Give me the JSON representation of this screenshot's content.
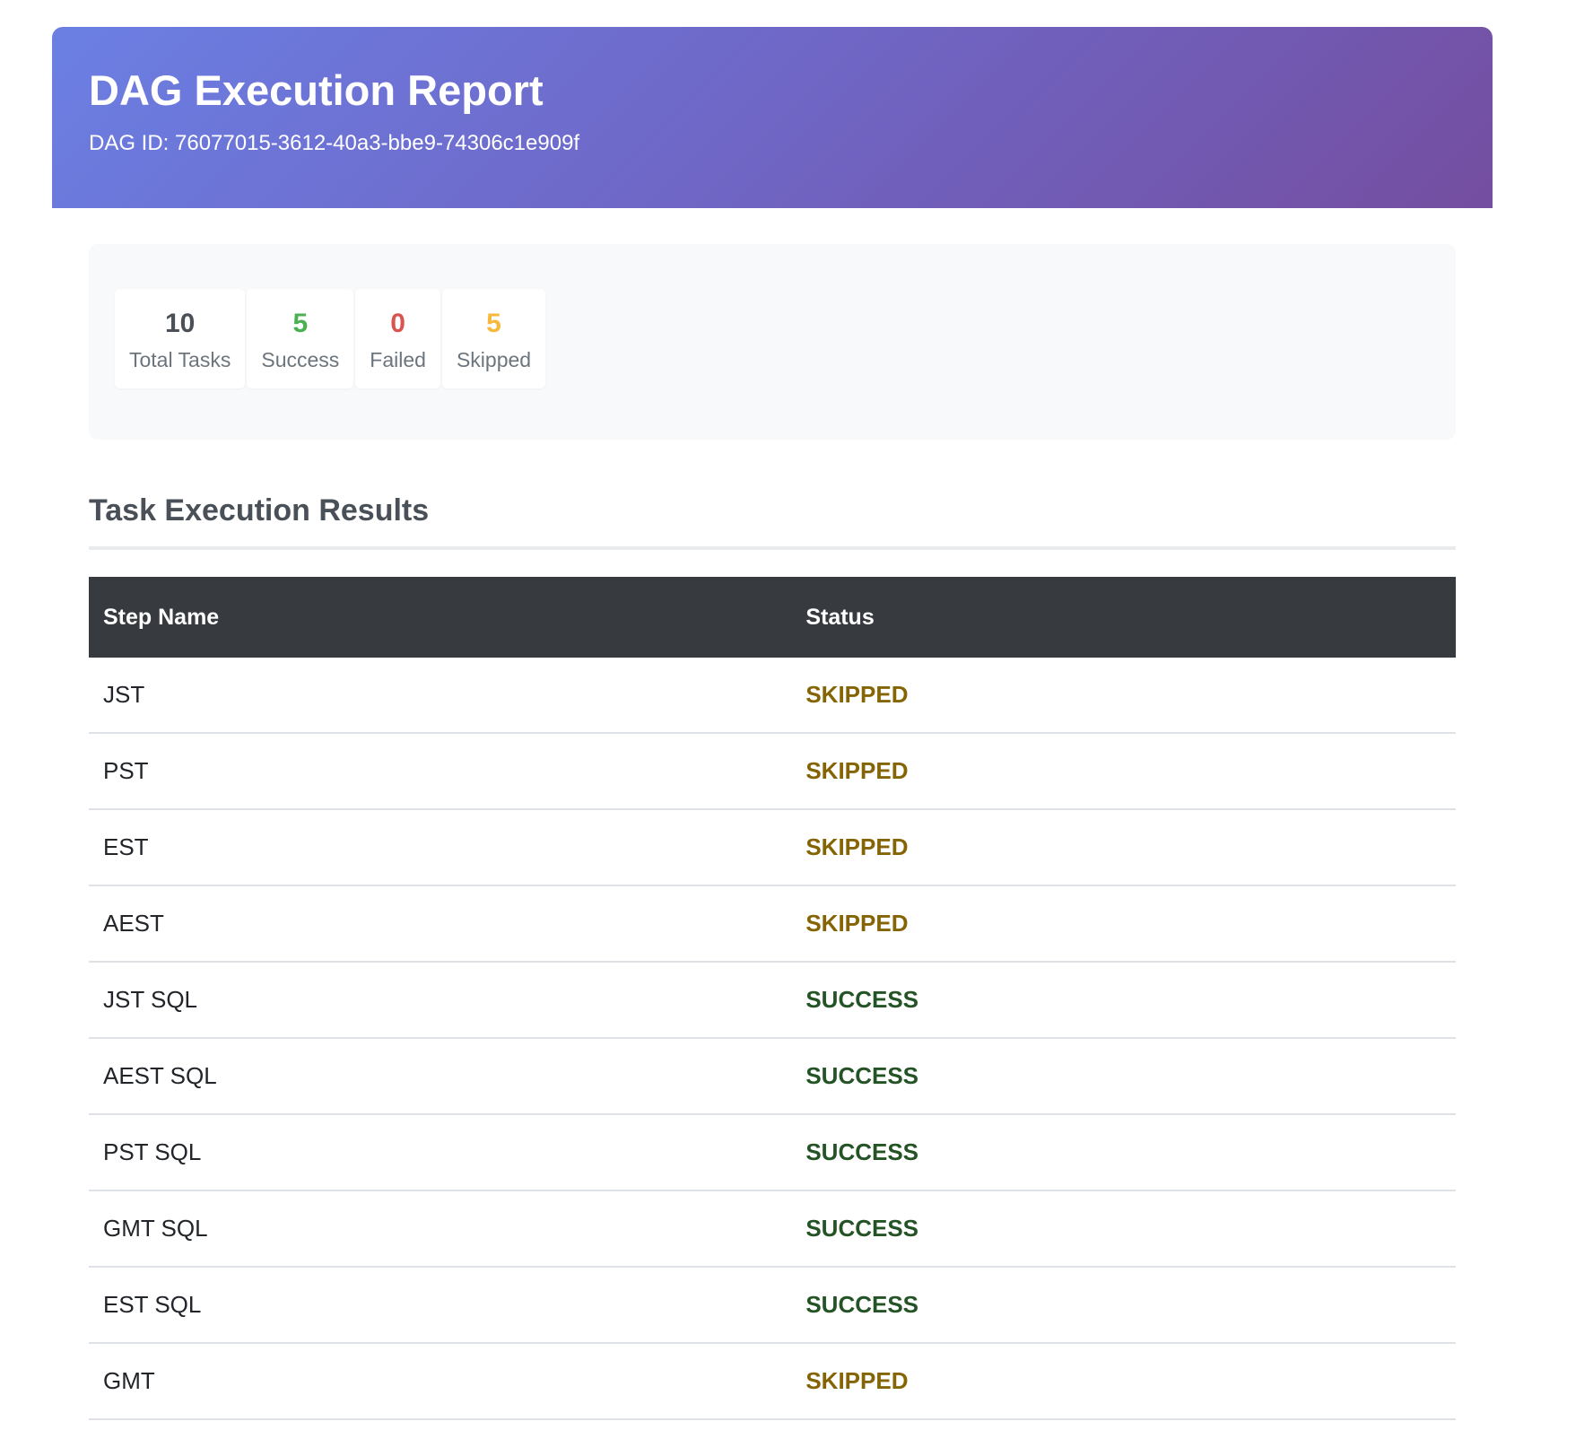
{
  "header": {
    "title": "DAG Execution Report",
    "dag_id": "DAG ID: 76077015-3612-40a3-bbe9-74306c1e909f"
  },
  "summary": {
    "stats": [
      {
        "value": "10",
        "label": "Total Tasks",
        "color": "#495057"
      },
      {
        "value": "5",
        "label": "Success",
        "color": "#4caf50"
      },
      {
        "value": "0",
        "label": "Failed",
        "color": "#d9534f"
      },
      {
        "value": "5",
        "label": "Skipped",
        "color": "#f6b93b"
      }
    ]
  },
  "results": {
    "title": "Task Execution Results",
    "columns": [
      "Step Name",
      "Status"
    ],
    "rows": [
      {
        "name": "JST",
        "status": "SKIPPED"
      },
      {
        "name": "PST",
        "status": "SKIPPED"
      },
      {
        "name": "EST",
        "status": "SKIPPED"
      },
      {
        "name": "AEST",
        "status": "SKIPPED"
      },
      {
        "name": "JST SQL",
        "status": "SUCCESS"
      },
      {
        "name": "AEST SQL",
        "status": "SUCCESS"
      },
      {
        "name": "PST SQL",
        "status": "SUCCESS"
      },
      {
        "name": "GMT SQL",
        "status": "SUCCESS"
      },
      {
        "name": "EST SQL",
        "status": "SUCCESS"
      },
      {
        "name": "GMT",
        "status": "SKIPPED"
      }
    ]
  },
  "colors": {
    "skipped": "#856404",
    "success": "#245326"
  }
}
